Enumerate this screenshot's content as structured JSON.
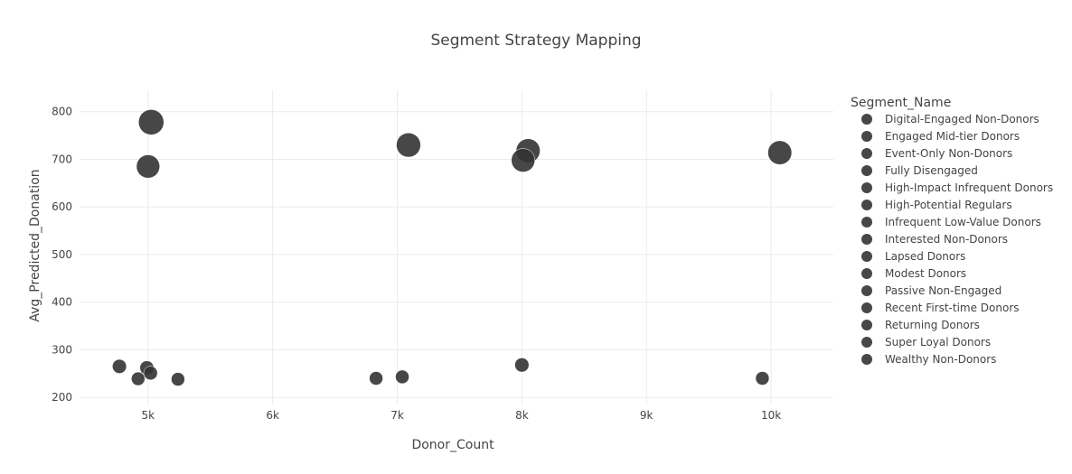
{
  "chart_data": {
    "type": "scatter",
    "title": "Segment Strategy Mapping",
    "xlabel": "Donor_Count",
    "ylabel": "Avg_Predicted_Donation",
    "xlim": [
      4450,
      10500
    ],
    "ylim": [
      185,
      845
    ],
    "x_ticks": [
      {
        "value": 5000,
        "label": "5k"
      },
      {
        "value": 6000,
        "label": "6k"
      },
      {
        "value": 7000,
        "label": "7k"
      },
      {
        "value": 8000,
        "label": "8k"
      },
      {
        "value": 9000,
        "label": "9k"
      },
      {
        "value": 10000,
        "label": "10k"
      }
    ],
    "y_ticks": [
      {
        "value": 200,
        "label": "200"
      },
      {
        "value": 300,
        "label": "300"
      },
      {
        "value": 400,
        "label": "400"
      },
      {
        "value": 500,
        "label": "500"
      },
      {
        "value": 600,
        "label": "600"
      },
      {
        "value": 700,
        "label": "700"
      },
      {
        "value": 800,
        "label": "800"
      }
    ],
    "grid": true,
    "marker_color": "#333333",
    "legend": {
      "title": "Segment_Name",
      "position": "right",
      "items": [
        "Digital-Engaged Non-Donors",
        "Engaged Mid-tier Donors",
        "Event-Only Non-Donors",
        "Fully Disengaged",
        "High-Impact Infrequent Donors",
        "High-Potential Regulars",
        "Infrequent Low-Value Donors",
        "Interested Non-Donors",
        "Lapsed Donors",
        "Modest Donors",
        "Passive Non-Engaged",
        "Recent First-time Donors",
        "Returning Donors",
        "Super Loyal Donors",
        "Wealthy Non-Donors"
      ]
    },
    "points": [
      {
        "x": 5025,
        "y": 778,
        "size": 778
      },
      {
        "x": 5000,
        "y": 685,
        "size": 685
      },
      {
        "x": 7090,
        "y": 730,
        "size": 730
      },
      {
        "x": 8050,
        "y": 718,
        "size": 718
      },
      {
        "x": 8010,
        "y": 698,
        "size": 698
      },
      {
        "x": 10070,
        "y": 714,
        "size": 714
      },
      {
        "x": 4770,
        "y": 265,
        "size": 265
      },
      {
        "x": 4990,
        "y": 262,
        "size": 262
      },
      {
        "x": 5020,
        "y": 251,
        "size": 251
      },
      {
        "x": 4920,
        "y": 239,
        "size": 239
      },
      {
        "x": 5240,
        "y": 238,
        "size": 238
      },
      {
        "x": 6830,
        "y": 240,
        "size": 240
      },
      {
        "x": 7040,
        "y": 243,
        "size": 243
      },
      {
        "x": 8000,
        "y": 268,
        "size": 268
      },
      {
        "x": 9930,
        "y": 240,
        "size": 240
      }
    ]
  }
}
